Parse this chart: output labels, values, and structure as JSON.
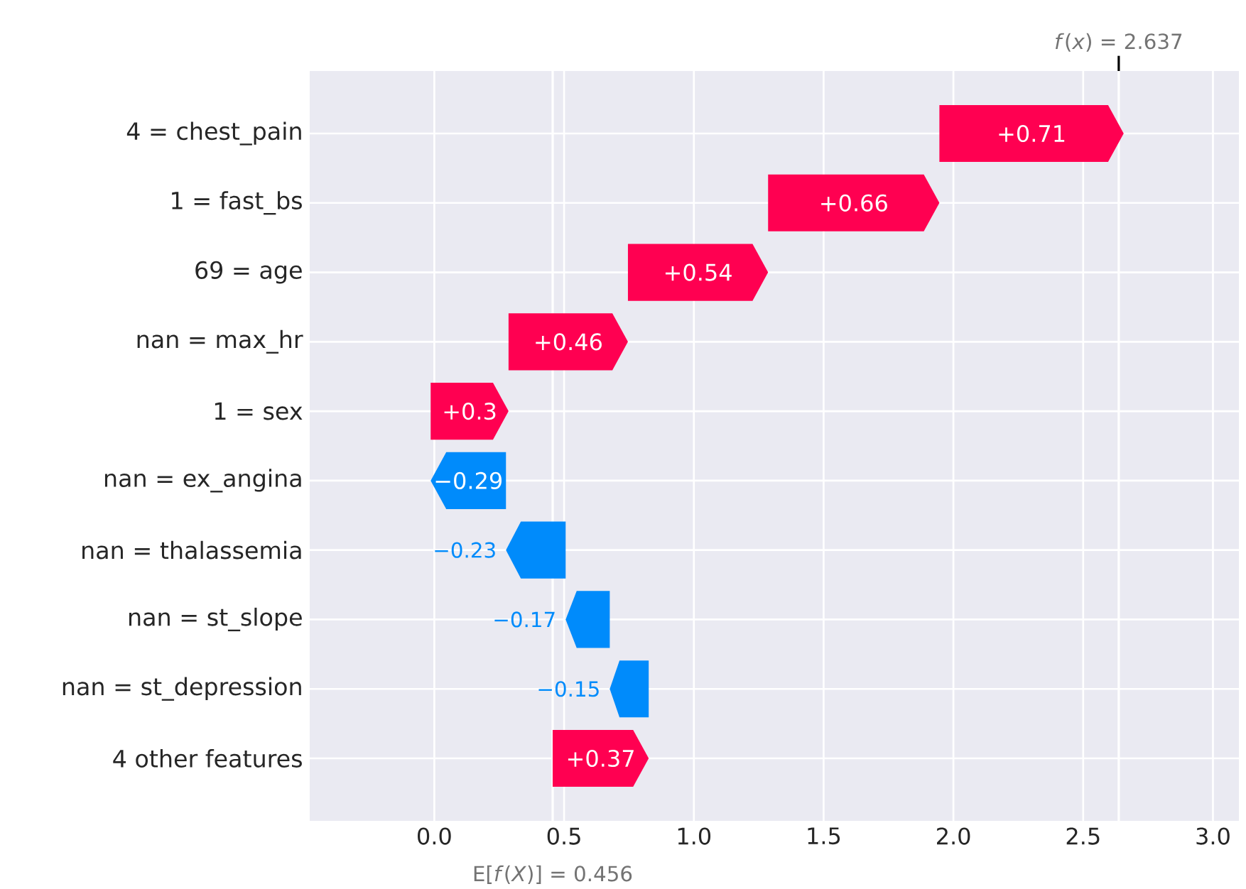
{
  "chart_data": {
    "type": "bar",
    "orientation": "horizontal",
    "categories": [
      "4 = chest_pain",
      "1 = fast_bs",
      "69 = age",
      "nan = max_hr",
      "1 = sex",
      "nan = ex_angina",
      "nan = thalassemia",
      "nan = st_slope",
      "nan = st_depression",
      "4 other features"
    ],
    "values": [
      0.71,
      0.66,
      0.54,
      0.46,
      0.3,
      -0.29,
      -0.23,
      -0.17,
      -0.15,
      0.37
    ],
    "base": [
      1.946,
      1.286,
      0.746,
      0.286,
      -0.014,
      0.276,
      0.506,
      0.676,
      0.826,
      0.456
    ],
    "value_labels": [
      "+0.71",
      "+0.66",
      "+0.54",
      "+0.46",
      "+0.3",
      "−0.29",
      "−0.23",
      "−0.17",
      "−0.15",
      "+0.37"
    ],
    "colors": [
      "#ff0051",
      "#ff0051",
      "#ff0051",
      "#ff0051",
      "#ff0051",
      "#008bfb",
      "#008bfb",
      "#008bfb",
      "#008bfb",
      "#ff0051"
    ],
    "xlim": [
      -0.48,
      3.1
    ],
    "xticks": [
      {
        "value": 0,
        "label": "0.0"
      },
      {
        "value": 0.5,
        "label": "0.5"
      },
      {
        "value": 1,
        "label": "1.0"
      },
      {
        "value": 1.5,
        "label": "1.5"
      },
      {
        "value": 2,
        "label": "2.0"
      },
      {
        "value": 2.5,
        "label": "2.5"
      },
      {
        "value": 3,
        "label": "3.0"
      }
    ],
    "ref_lines": [
      {
        "axis": "x",
        "value": 0.456,
        "label": "E[*f*(*X*)] = 0.456",
        "color": "#ffffff"
      },
      {
        "axis": "x",
        "value": 2.637,
        "label": "*f*(*x*) = 2.637",
        "color": "#ffffff"
      }
    ],
    "grid": true
  }
}
